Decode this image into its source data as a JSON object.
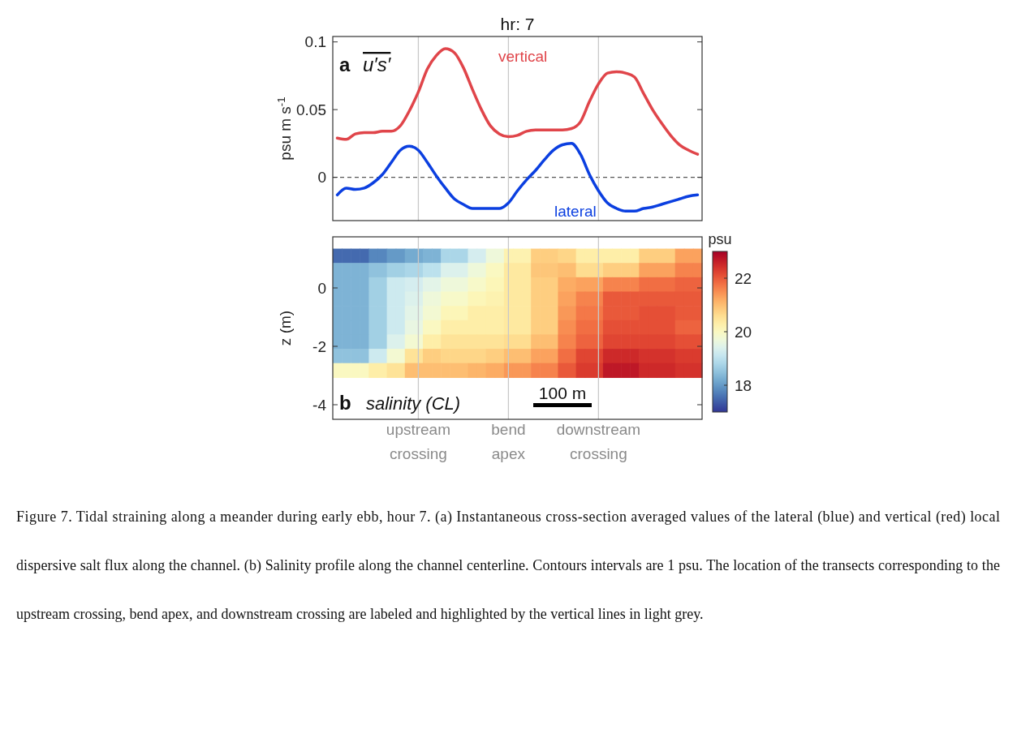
{
  "chart_data": [
    {
      "type": "line",
      "title": "hr: 7",
      "ylabel": "psu m s$^{-1}$",
      "categories": [
        null,
        null,
        null,
        null,
        null,
        null,
        null,
        null,
        null,
        "upstream crossing",
        null,
        null,
        null,
        null,
        null,
        null,
        null,
        null,
        null,
        "bend apex",
        null,
        null,
        null,
        null,
        null,
        null,
        null,
        null,
        null,
        "downstream crossing",
        null,
        null,
        null,
        null,
        null,
        null,
        null,
        null,
        null,
        null,
        null
      ],
      "series": [
        {
          "name": "vertical",
          "color": "#e0454a",
          "values": [
            0.029,
            0.028,
            0.032,
            0.033,
            0.033,
            0.034,
            0.034,
            0.038,
            0.049,
            0.063,
            0.08,
            0.09,
            0.095,
            0.092,
            0.081,
            0.065,
            0.05,
            0.038,
            0.032,
            0.03,
            0.031,
            0.034,
            0.035,
            0.035,
            0.035,
            0.035,
            0.036,
            0.041,
            0.056,
            0.069,
            0.077,
            0.078,
            0.077,
            0.074,
            0.062,
            0.05,
            0.04,
            0.031,
            0.024,
            0.02,
            0.017
          ]
        },
        {
          "name": "lateral",
          "color": "#0b3fe0",
          "values": [
            -0.013,
            -0.008,
            -0.009,
            -0.008,
            -0.004,
            0.002,
            0.011,
            0.02,
            0.023,
            0.02,
            0.011,
            0.001,
            -0.008,
            -0.016,
            -0.02,
            -0.023,
            -0.023,
            -0.023,
            -0.023,
            -0.019,
            -0.01,
            -0.002,
            0.005,
            0.013,
            0.02,
            0.024,
            0.025,
            0.017,
            0.002,
            -0.01,
            -0.019,
            -0.023,
            -0.025,
            -0.025,
            -0.023,
            -0.022,
            -0.02,
            -0.018,
            -0.016,
            -0.014,
            -0.013
          ]
        }
      ],
      "ylim": [
        -0.032,
        0.104
      ],
      "yticks": [
        0,
        0.05,
        0.1
      ],
      "tick_labels": "y",
      "ref_lines": [
        {
          "axis": "y",
          "value": 0,
          "color": "#555555",
          "line_style": "dashed"
        },
        {
          "axis": "x",
          "value": "upstream crossing",
          "color": "#c8c8c8"
        },
        {
          "axis": "x",
          "value": "bend apex",
          "color": "#c8c8c8"
        },
        {
          "axis": "x",
          "value": "downstream crossing",
          "color": "#c8c8c8"
        }
      ],
      "annotations": [
        "a",
        "u′s′"
      ]
    },
    {
      "type": "heatmap",
      "ylabel": "z (m)",
      "clabel": "psu",
      "categories": [
        null,
        null,
        null,
        null,
        null,
        null,
        null,
        null,
        null,
        "upstream crossing",
        null,
        null,
        null,
        null,
        null,
        null,
        null,
        null,
        null,
        "bend apex",
        null,
        null,
        null,
        null,
        null,
        null,
        null,
        null,
        null,
        "downstream crossing",
        null,
        null,
        null,
        null,
        null,
        null,
        null,
        null,
        null,
        null,
        null
      ],
      "y": [
        1.1,
        0.61,
        0.12,
        -0.37,
        -0.86,
        -1.35,
        -1.84,
        -2.33,
        -2.82
      ],
      "cells": [
        [
          17.5,
          17.5,
          17.5,
          17.5,
          17.8,
          17.8,
          18.0,
          18.0,
          18.2,
          18.2,
          18.3,
          18.3,
          18.8,
          18.8,
          18.8,
          19.3,
          19.3,
          19.7,
          19.7,
          20.2,
          20.2,
          20.2,
          20.8,
          20.8,
          20.8,
          20.7,
          20.7,
          20.3,
          20.3,
          20.3,
          20.3,
          20.3,
          20.3,
          20.3,
          20.8,
          20.8,
          20.8,
          20.8,
          21.3,
          21.3,
          21.3
        ],
        [
          18.3,
          18.3,
          18.3,
          18.3,
          18.5,
          18.5,
          18.7,
          18.7,
          18.8,
          18.8,
          19.0,
          19.0,
          19.4,
          19.4,
          19.4,
          19.7,
          19.7,
          20.0,
          20.0,
          20.4,
          20.4,
          20.4,
          20.9,
          20.9,
          20.9,
          21.0,
          21.0,
          20.6,
          20.6,
          20.6,
          20.8,
          20.8,
          20.8,
          20.8,
          21.3,
          21.3,
          21.3,
          21.3,
          21.6,
          21.6,
          21.6
        ],
        [
          18.3,
          18.3,
          18.3,
          18.3,
          18.7,
          18.7,
          19.2,
          19.2,
          19.3,
          19.3,
          19.5,
          19.5,
          19.7,
          19.7,
          19.7,
          19.9,
          19.9,
          20.1,
          20.1,
          20.4,
          20.4,
          20.4,
          20.8,
          20.8,
          20.8,
          21.2,
          21.2,
          21.3,
          21.3,
          21.3,
          21.6,
          21.6,
          21.6,
          21.6,
          21.8,
          21.8,
          21.8,
          21.8,
          21.9,
          21.9,
          21.9
        ],
        [
          18.3,
          18.3,
          18.3,
          18.3,
          18.7,
          18.7,
          19.2,
          19.2,
          19.4,
          19.4,
          19.7,
          19.7,
          19.9,
          19.9,
          19.9,
          20.1,
          20.1,
          20.2,
          20.2,
          20.4,
          20.4,
          20.4,
          20.8,
          20.8,
          20.8,
          21.3,
          21.3,
          21.6,
          21.6,
          21.6,
          22.0,
          22.0,
          22.0,
          22.0,
          22.0,
          22.0,
          22.0,
          22.0,
          22.0,
          22.0,
          22.0
        ],
        [
          18.3,
          18.3,
          18.3,
          18.3,
          18.7,
          18.7,
          19.2,
          19.2,
          19.5,
          19.5,
          19.8,
          19.8,
          20.1,
          20.1,
          20.1,
          20.3,
          20.3,
          20.3,
          20.3,
          20.4,
          20.4,
          20.4,
          20.8,
          20.8,
          20.8,
          21.4,
          21.4,
          21.7,
          21.7,
          21.7,
          22.0,
          22.0,
          22.0,
          22.0,
          22.1,
          22.1,
          22.1,
          22.1,
          22.0,
          22.0,
          22.0
        ],
        [
          18.3,
          18.3,
          18.3,
          18.3,
          18.7,
          18.7,
          19.2,
          19.2,
          19.6,
          19.6,
          20.0,
          20.0,
          20.3,
          20.3,
          20.3,
          20.3,
          20.3,
          20.3,
          20.3,
          20.4,
          20.4,
          20.4,
          20.8,
          20.8,
          20.8,
          21.5,
          21.5,
          21.8,
          21.8,
          21.8,
          22.1,
          22.1,
          22.1,
          22.1,
          22.1,
          22.1,
          22.1,
          22.1,
          21.9,
          21.9,
          21.9
        ],
        [
          18.3,
          18.3,
          18.3,
          18.3,
          18.7,
          18.7,
          19.4,
          19.4,
          19.8,
          19.8,
          20.3,
          20.3,
          20.5,
          20.5,
          20.5,
          20.5,
          20.5,
          20.5,
          20.5,
          20.6,
          20.6,
          20.6,
          21.0,
          21.0,
          21.0,
          21.6,
          21.6,
          21.9,
          21.9,
          21.9,
          22.2,
          22.2,
          22.2,
          22.2,
          22.2,
          22.2,
          22.2,
          22.2,
          22.1,
          22.1,
          22.1
        ],
        [
          18.5,
          18.5,
          18.5,
          18.5,
          19.2,
          19.2,
          19.8,
          19.8,
          20.5,
          20.5,
          20.8,
          20.8,
          20.7,
          20.7,
          20.7,
          20.7,
          20.7,
          20.8,
          20.8,
          21.0,
          21.0,
          21.0,
          21.3,
          21.3,
          21.3,
          21.8,
          21.8,
          22.2,
          22.2,
          22.2,
          22.5,
          22.5,
          22.5,
          22.5,
          22.4,
          22.4,
          22.4,
          22.4,
          22.3,
          22.3,
          22.3
        ],
        [
          20.0,
          20.0,
          20.0,
          20.0,
          20.3,
          20.3,
          20.5,
          20.5,
          21.0,
          21.0,
          21.0,
          21.0,
          21.0,
          21.0,
          21.0,
          21.1,
          21.1,
          21.2,
          21.2,
          21.4,
          21.4,
          21.4,
          21.6,
          21.6,
          21.6,
          22.0,
          22.0,
          22.3,
          22.3,
          22.3,
          22.7,
          22.7,
          22.7,
          22.7,
          22.5,
          22.5,
          22.5,
          22.5,
          22.4,
          22.4,
          22.4
        ]
      ],
      "clim": [
        17,
        23
      ],
      "cticks": [
        18,
        20,
        22
      ],
      "ylim": [
        -4.5,
        1.75
      ],
      "yticks": [
        0,
        -2,
        -4
      ],
      "ref_lines": [
        {
          "axis": "x",
          "value": "upstream crossing",
          "color": "#c8c8c8"
        },
        {
          "axis": "x",
          "value": "bend apex",
          "color": "#c8c8c8"
        },
        {
          "axis": "x",
          "value": "downstream crossing",
          "color": "#c8c8c8"
        }
      ],
      "annotations": [
        "b",
        "salinity (CL)",
        "100 m",
        "Figure 7. Tidal straining along a meander during early ebb, hour 7. (a) Instantaneous cross-section averaged values of the lateral (blue) and vertical (red) local dispersive salt flux along the channel. (b) Salinity profile along the channel centerline. Contours intervals are 1 psu. The location of the transects corresponding to the upstream crossing, bend apex, and downstream crossing are labeled and highlighted by the vertical lines in light grey."
      ]
    }
  ]
}
